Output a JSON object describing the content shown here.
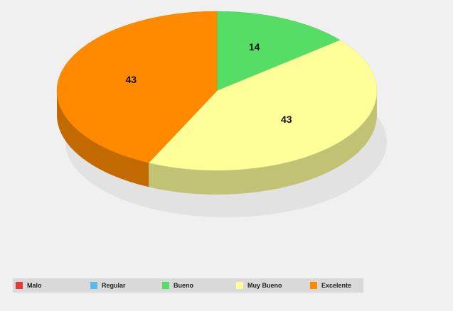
{
  "chart_data": {
    "type": "pie",
    "categories": [
      "Malo",
      "Regular",
      "Bueno",
      "Muy Bueno",
      "Excelente"
    ],
    "values": [
      0,
      0,
      14,
      43,
      43
    ],
    "colors": [
      "#e03a3a",
      "#5bbbe8",
      "#55dd66",
      "#ffff99",
      "#ff8a00"
    ],
    "legend": "bottom"
  }
}
